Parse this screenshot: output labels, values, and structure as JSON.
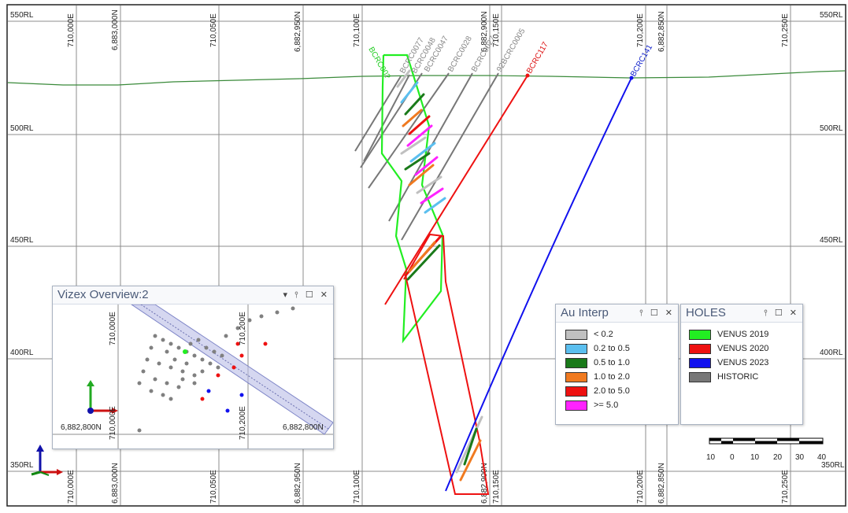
{
  "section": {
    "rl_labels_left": [
      "550RL",
      "500RL",
      "450RL",
      "400RL",
      "350RL"
    ],
    "rl_labels_right": [
      "550RL",
      "500RL",
      "450RL",
      "400RL",
      "350RL"
    ],
    "grid_top_labels": [
      "710,000E",
      "6,883,000N",
      "710,050E",
      "6,882,950N",
      "710,100E",
      "6,882,900N",
      "710,150E",
      "710,200E",
      "6,882,850N",
      "710,250E"
    ],
    "grid_bottom_labels": [
      "710,000E",
      "6,883,000N",
      "710,050E",
      "6,882,950N",
      "710,100E",
      "6,882,900N",
      "710,150E",
      "710,200E",
      "6,882,850N",
      "710,250E"
    ],
    "hole_labels": [
      {
        "text": "BCRC00?",
        "color": "#22cc22"
      },
      {
        "text": "BCRC0077",
        "color": "#888888"
      },
      {
        "text": "BCRC0048",
        "color": "#888888"
      },
      {
        "text": "BCRC0047",
        "color": "#888888"
      },
      {
        "text": "BCRC0028",
        "color": "#888888"
      },
      {
        "text": "BCRC0027",
        "color": "#888888"
      },
      {
        "text": "92BCRC0005",
        "color": "#888888"
      },
      {
        "text": "BCRC117",
        "color": "#dd1111"
      },
      {
        "text": "BCRC141",
        "color": "#1122cc"
      }
    ],
    "scale_bar": {
      "ticks": [
        "10",
        "0",
        "10",
        "20",
        "30",
        "40"
      ]
    }
  },
  "overview": {
    "title": "Vizex Overview:2",
    "controls": "▾ ⫯ ☐ ✕",
    "labels": {
      "e1": "710,000E",
      "e2": "710,200E",
      "e3": "710,200E",
      "n1": "6,882,800N",
      "n2": "6,882,800N"
    }
  },
  "au_legend": {
    "title": "Au Interp",
    "controls": "⫯ ☐ ✕",
    "items": [
      {
        "label": "< 0.2",
        "color": "#c0c0c0"
      },
      {
        "label": "0.2 to 0.5",
        "color": "#5bbfef"
      },
      {
        "label": "0.5 to 1.0",
        "color": "#1a7a1a"
      },
      {
        "label": "1.0 to 2.0",
        "color": "#f07a20"
      },
      {
        "label": "2.0 to 5.0",
        "color": "#ee1111"
      },
      {
        "label": ">= 5.0",
        "color": "#ff22ff"
      }
    ]
  },
  "holes_legend": {
    "title": "HOLES",
    "controls": "⫯ ☐ ✕",
    "items": [
      {
        "label": "VENUS 2019",
        "color": "#22ee22"
      },
      {
        "label": "VENUS 2020",
        "color": "#ee1111"
      },
      {
        "label": "VENUS 2023",
        "color": "#1111ee"
      },
      {
        "label": "HISTORIC",
        "color": "#777777"
      }
    ]
  },
  "colors": {
    "grid": "#8c8c8c",
    "topography": "#3a8a3a",
    "venus2019": "#22ee22",
    "venus2020": "#ee1111",
    "venus2023": "#1111ee",
    "historic": "#777777"
  }
}
